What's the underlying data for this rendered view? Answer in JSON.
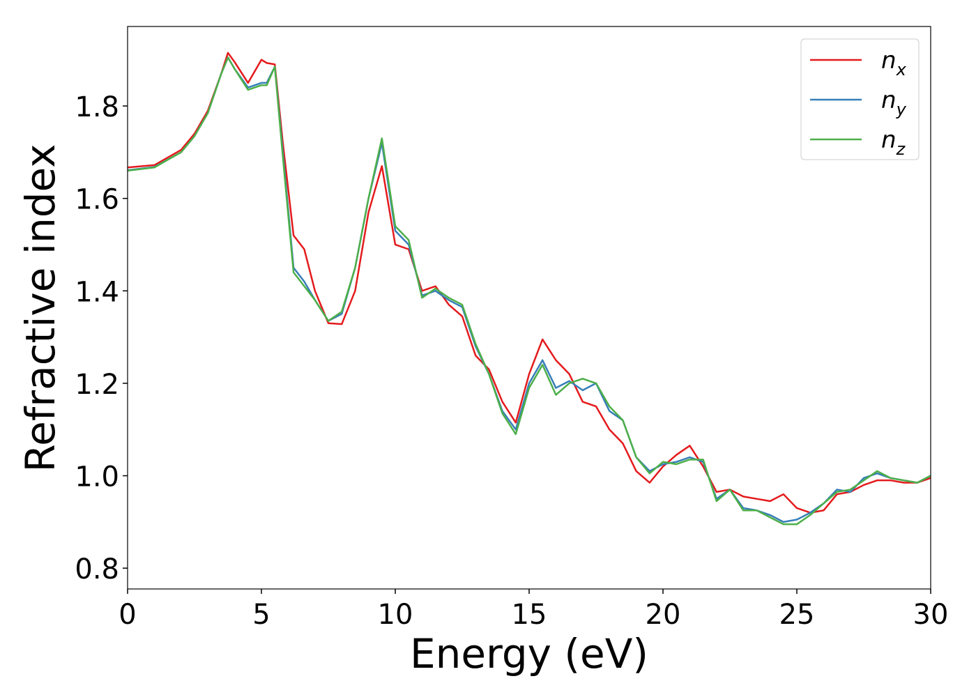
{
  "chart_data": {
    "type": "line",
    "xlabel": "Energy (eV)",
    "ylabel": "Refractive index",
    "xlim": [
      0,
      30
    ],
    "xticks": [
      0,
      5,
      10,
      15,
      20,
      25,
      30
    ],
    "ylim": [
      0.755,
      1.972
    ],
    "yticks": [
      {
        "value": 0.8,
        "label": "0.8"
      },
      {
        "value": 1.0,
        "label": "1.0"
      },
      {
        "value": 1.2,
        "label": "1.2"
      },
      {
        "value": 1.4,
        "label": "1.4"
      },
      {
        "value": 1.6,
        "label": "1.6"
      },
      {
        "value": 1.8,
        "label": "1.8"
      }
    ],
    "legend": "upper right",
    "x": [
      0,
      1,
      2,
      2.5,
      3,
      3.5,
      3.75,
      4,
      4.5,
      5,
      5.2,
      5.5,
      5.8,
      6.2,
      6.6,
      7,
      7.5,
      8,
      8.5,
      9,
      9.5,
      10,
      10.5,
      11,
      11.5,
      12,
      12.5,
      13,
      13.5,
      14,
      14.5,
      15,
      15.5,
      16,
      16.5,
      17,
      17.5,
      18,
      18.5,
      19,
      19.5,
      20,
      20.5,
      21,
      21.5,
      22,
      22.5,
      23,
      23.5,
      24,
      24.5,
      25,
      25.5,
      26,
      26.5,
      27,
      27.5,
      28,
      28.5,
      29,
      29.5,
      30
    ],
    "series": [
      {
        "name": "n",
        "name_subscript": "x",
        "color": "#e41a1c",
        "values": [
          1.667,
          1.672,
          1.705,
          1.74,
          1.79,
          1.87,
          1.915,
          1.895,
          1.85,
          1.9,
          1.893,
          1.89,
          1.72,
          1.52,
          1.49,
          1.4,
          1.33,
          1.328,
          1.4,
          1.57,
          1.67,
          1.5,
          1.49,
          1.4,
          1.41,
          1.37,
          1.345,
          1.26,
          1.23,
          1.16,
          1.115,
          1.22,
          1.295,
          1.25,
          1.22,
          1.16,
          1.15,
          1.1,
          1.07,
          1.01,
          0.985,
          1.02,
          1.045,
          1.065,
          1.02,
          0.965,
          0.97,
          0.955,
          0.95,
          0.945,
          0.96,
          0.93,
          0.92,
          0.925,
          0.96,
          0.965,
          0.98,
          0.99,
          0.99,
          0.985,
          0.985,
          0.995
        ]
      },
      {
        "name": "n",
        "name_subscript": "y",
        "color": "#377eb8",
        "values": [
          1.661,
          1.668,
          1.7,
          1.735,
          1.785,
          1.87,
          1.905,
          1.88,
          1.84,
          1.85,
          1.85,
          1.885,
          1.7,
          1.45,
          1.42,
          1.38,
          1.335,
          1.35,
          1.45,
          1.6,
          1.72,
          1.53,
          1.5,
          1.39,
          1.4,
          1.38,
          1.365,
          1.28,
          1.22,
          1.14,
          1.1,
          1.2,
          1.25,
          1.19,
          1.205,
          1.185,
          1.2,
          1.14,
          1.12,
          1.04,
          1.01,
          1.025,
          1.03,
          1.04,
          1.03,
          0.95,
          0.97,
          0.93,
          0.925,
          0.915,
          0.9,
          0.905,
          0.92,
          0.94,
          0.97,
          0.965,
          0.995,
          1.005,
          0.995,
          0.99,
          0.985,
          1.0
        ]
      },
      {
        "name": "n",
        "name_subscript": "z",
        "color": "#4daf4a",
        "values": [
          1.66,
          1.667,
          1.7,
          1.735,
          1.785,
          1.87,
          1.905,
          1.88,
          1.835,
          1.845,
          1.845,
          1.885,
          1.69,
          1.44,
          1.41,
          1.38,
          1.335,
          1.355,
          1.45,
          1.6,
          1.73,
          1.54,
          1.51,
          1.385,
          1.405,
          1.385,
          1.37,
          1.285,
          1.22,
          1.135,
          1.09,
          1.19,
          1.24,
          1.175,
          1.2,
          1.21,
          1.2,
          1.15,
          1.12,
          1.04,
          1.005,
          1.03,
          1.025,
          1.035,
          1.035,
          0.945,
          0.97,
          0.925,
          0.925,
          0.91,
          0.895,
          0.895,
          0.915,
          0.94,
          0.965,
          0.97,
          0.99,
          1.01,
          0.995,
          0.99,
          0.985,
          1.0
        ]
      }
    ]
  }
}
